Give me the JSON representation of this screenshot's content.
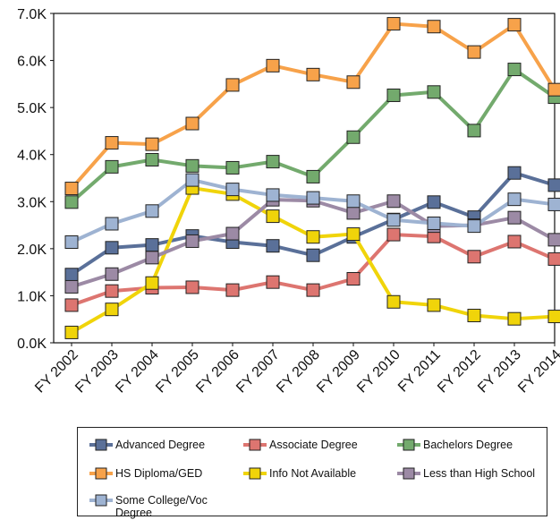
{
  "chart_data": {
    "type": "line",
    "title": "",
    "xlabel": "",
    "ylabel": "",
    "categories": [
      "FY 2002",
      "FY 2003",
      "FY 2004",
      "FY 2005",
      "FY 2006",
      "FY 2007",
      "FY 2008",
      "FY 2009",
      "FY 2010",
      "FY 2011",
      "FY 2012",
      "FY 2013",
      "FY 2014"
    ],
    "ylim": [
      0,
      7000
    ],
    "yticks": [
      {
        "value": 0,
        "label": "0.0K"
      },
      {
        "value": 1000,
        "label": "1.0K"
      },
      {
        "value": 2000,
        "label": "2.0K"
      },
      {
        "value": 3000,
        "label": "3.0K"
      },
      {
        "value": 4000,
        "label": "4.0K"
      },
      {
        "value": 5000,
        "label": "5.0K"
      },
      {
        "value": 6000,
        "label": "6.0K"
      },
      {
        "value": 7000,
        "label": "7.0K"
      }
    ],
    "grid": false,
    "legend_position": "bottom",
    "series": [
      {
        "name": "Advanced Degree",
        "color": "#5a7099",
        "values": [
          1450,
          2020,
          2080,
          2270,
          2140,
          2060,
          1860,
          2250,
          2620,
          2990,
          2670,
          3610,
          3350
        ]
      },
      {
        "name": "Associate Degree",
        "color": "#dd7570",
        "values": [
          800,
          1100,
          1170,
          1180,
          1120,
          1290,
          1120,
          1360,
          2300,
          2260,
          1830,
          2150,
          1780
        ]
      },
      {
        "name": "Bachelors Degree",
        "color": "#73aa6d",
        "values": [
          2990,
          3740,
          3890,
          3760,
          3720,
          3850,
          3530,
          4370,
          5260,
          5330,
          4510,
          5810,
          5220
        ]
      },
      {
        "name": "HS Diploma/GED",
        "color": "#f7a24a",
        "values": [
          3280,
          4250,
          4220,
          4660,
          5480,
          5890,
          5700,
          5540,
          6780,
          6720,
          6180,
          6760,
          5380
        ]
      },
      {
        "name": "Info Not Available",
        "color": "#f0d40a",
        "values": [
          220,
          710,
          1270,
          3290,
          3160,
          2690,
          2250,
          2310,
          870,
          800,
          580,
          510,
          560
        ]
      },
      {
        "name": "Less than High School",
        "color": "#9c8aa5",
        "values": [
          1190,
          1460,
          1810,
          2160,
          2320,
          3040,
          3020,
          2760,
          3010,
          2480,
          2500,
          2660,
          2190
        ]
      },
      {
        "name": "Some College/Voc Degree",
        "color": "#9eb3d2",
        "values": [
          2140,
          2530,
          2800,
          3460,
          3260,
          3140,
          3080,
          3010,
          2610,
          2540,
          2480,
          3050,
          2940
        ]
      }
    ]
  }
}
